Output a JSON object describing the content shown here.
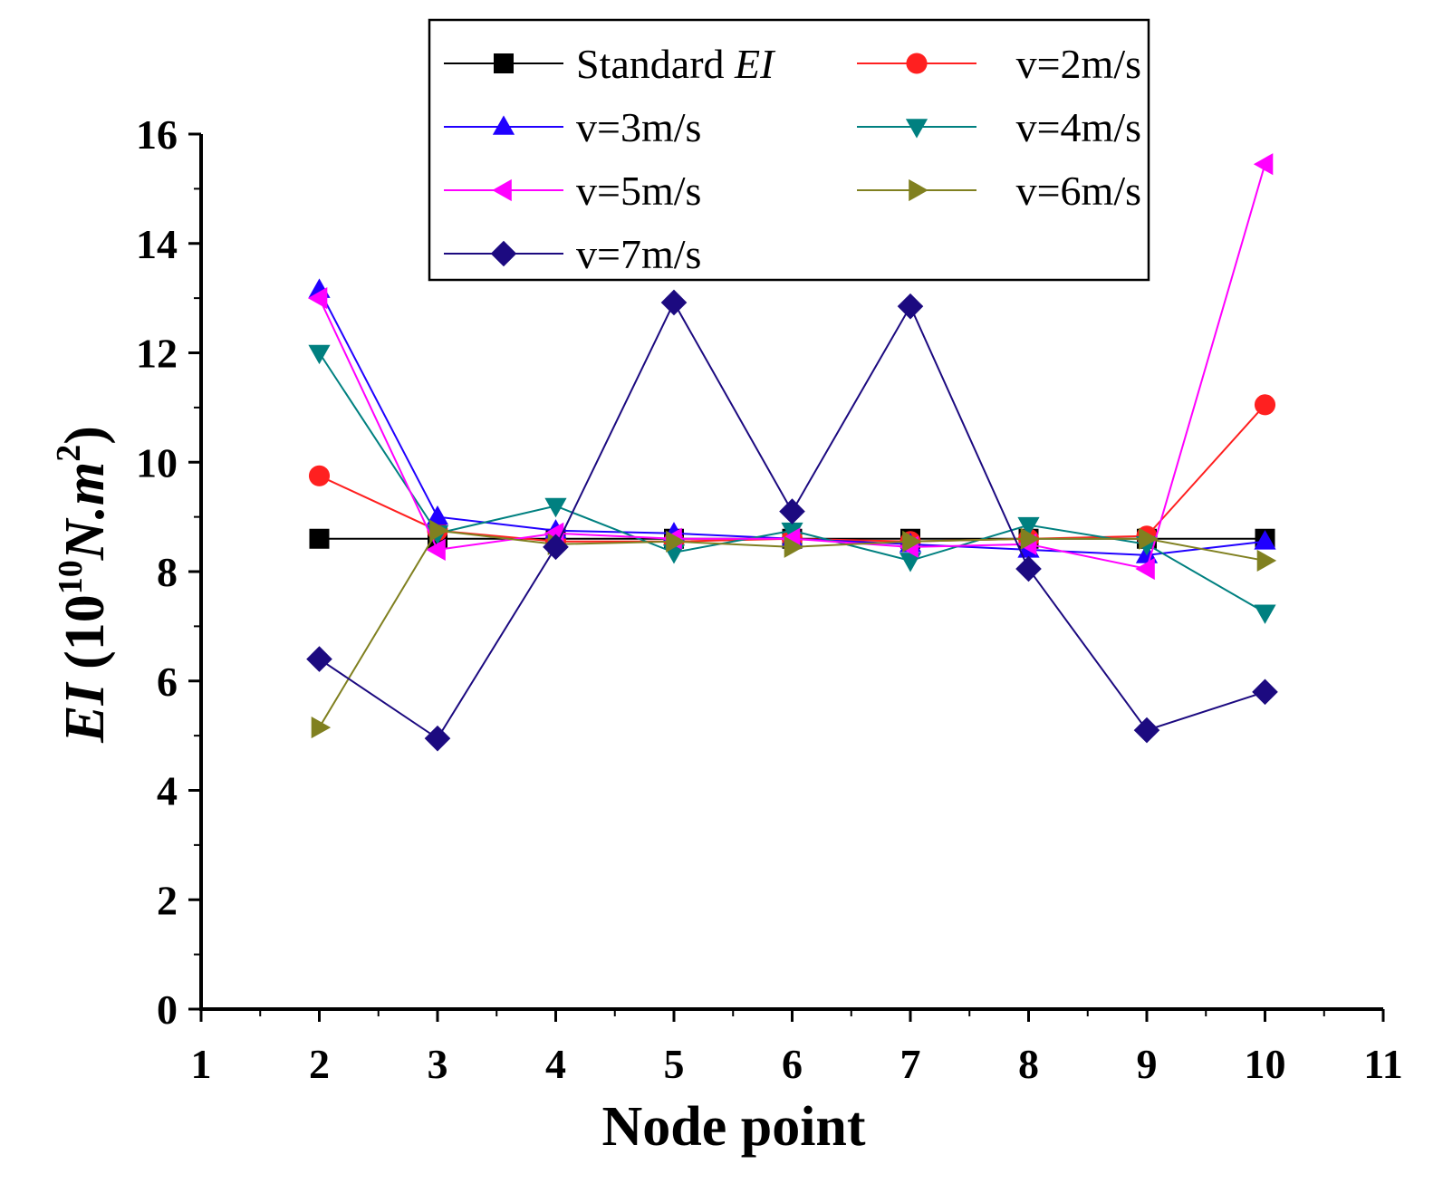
{
  "chart_data": {
    "type": "line",
    "xlabel": "Node point",
    "ylabel": {
      "italic_part": "EI",
      "open": " (10",
      "exp": "10",
      "unit": "N.",
      "unit_italic": "m",
      "sq": "2",
      "close": ")"
    },
    "xlim": [
      1,
      11
    ],
    "ylim": [
      0,
      16
    ],
    "xticks": [
      1,
      2,
      3,
      4,
      5,
      6,
      7,
      8,
      9,
      10,
      11
    ],
    "yticks": [
      0,
      2,
      4,
      6,
      8,
      10,
      12,
      14,
      16
    ],
    "x": [
      2,
      3,
      4,
      5,
      6,
      7,
      8,
      9,
      10
    ],
    "legend_position": "top-center",
    "series": [
      {
        "name": "Standard ",
        "name_italic": "EI",
        "color": "#000000",
        "marker": "square",
        "values": [
          8.6,
          8.6,
          8.6,
          8.6,
          8.6,
          8.6,
          8.6,
          8.6,
          8.6
        ]
      },
      {
        "name": "v=2m/s",
        "color": "#ff2020",
        "marker": "circle",
        "values": [
          9.75,
          8.75,
          8.55,
          8.55,
          8.6,
          8.55,
          8.6,
          8.65,
          11.05
        ]
      },
      {
        "name": "v=3m/s",
        "color": "#2000ff",
        "marker": "triangle-up",
        "values": [
          13.15,
          9.0,
          8.75,
          8.7,
          8.6,
          8.5,
          8.4,
          8.3,
          8.55
        ]
      },
      {
        "name": "v=4m/s",
        "color": "#008080",
        "marker": "triangle-down",
        "values": [
          12.0,
          8.7,
          9.2,
          8.35,
          8.75,
          8.2,
          8.85,
          8.5,
          7.25
        ]
      },
      {
        "name": "v=5m/s",
        "color": "#ff00ff",
        "marker": "triangle-left",
        "values": [
          13.0,
          8.4,
          8.7,
          8.6,
          8.6,
          8.45,
          8.5,
          8.05,
          15.45
        ]
      },
      {
        "name": "v=6m/s",
        "color": "#808020",
        "marker": "triangle-right",
        "values": [
          5.15,
          8.75,
          8.5,
          8.55,
          8.45,
          8.55,
          8.6,
          8.6,
          8.2
        ]
      },
      {
        "name": "v=7m/s",
        "color": "#1c0a80",
        "marker": "diamond",
        "values": [
          6.4,
          4.95,
          8.45,
          12.92,
          9.1,
          12.85,
          8.05,
          5.1,
          5.8
        ]
      }
    ]
  }
}
